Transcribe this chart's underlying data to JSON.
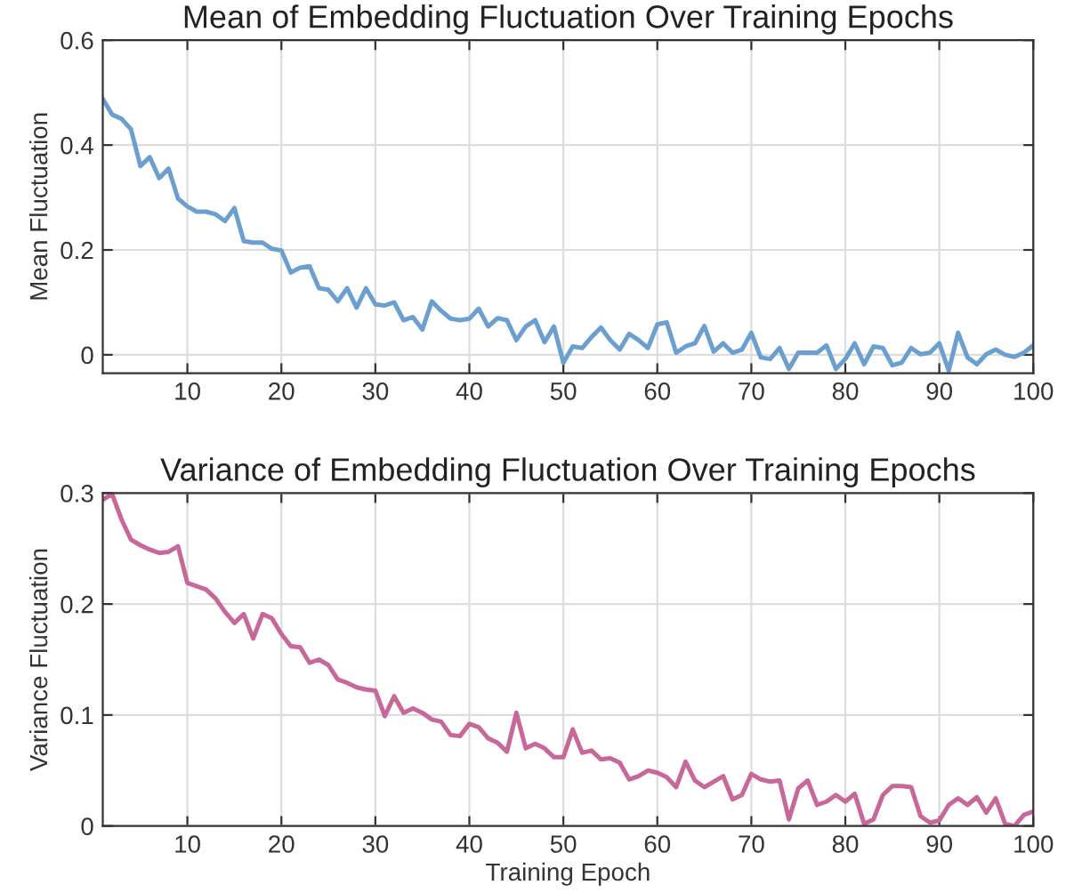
{
  "chart_data": [
    {
      "type": "line",
      "title": "Mean of Embedding Fluctuation Over Training Epochs",
      "ylabel": "Mean Fluctuation",
      "xlim": [
        1,
        100
      ],
      "xticks": [
        10,
        20,
        30,
        40,
        50,
        60,
        70,
        80,
        90,
        100
      ],
      "ylim": [
        -0.035,
        0.6
      ],
      "yticks": [
        0,
        0.2,
        0.4,
        0.6
      ],
      "grid": true,
      "x": [
        1,
        2,
        3,
        4,
        5,
        6,
        7,
        8,
        9,
        10,
        11,
        12,
        13,
        14,
        15,
        16,
        17,
        18,
        19,
        20,
        21,
        22,
        23,
        24,
        25,
        26,
        27,
        28,
        29,
        30,
        31,
        32,
        33,
        34,
        35,
        36,
        37,
        38,
        39,
        40,
        41,
        42,
        43,
        44,
        45,
        46,
        47,
        48,
        49,
        50,
        51,
        52,
        53,
        54,
        55,
        56,
        57,
        58,
        59,
        60,
        61,
        62,
        63,
        64,
        65,
        66,
        67,
        68,
        69,
        70,
        71,
        72,
        73,
        74,
        75,
        76,
        77,
        78,
        79,
        80,
        81,
        82,
        83,
        84,
        85,
        86,
        87,
        88,
        89,
        90,
        91,
        92,
        93,
        94,
        95,
        96,
        97,
        98,
        99,
        100
      ],
      "series": [
        {
          "color": "#6a9fd0",
          "values": [
            0.488,
            0.458,
            0.45,
            0.43,
            0.36,
            0.377,
            0.337,
            0.355,
            0.298,
            0.283,
            0.273,
            0.273,
            0.268,
            0.255,
            0.28,
            0.217,
            0.214,
            0.214,
            0.202,
            0.199,
            0.157,
            0.166,
            0.169,
            0.127,
            0.124,
            0.102,
            0.127,
            0.09,
            0.127,
            0.096,
            0.094,
            0.1,
            0.066,
            0.072,
            0.048,
            0.102,
            0.084,
            0.069,
            0.066,
            0.069,
            0.088,
            0.054,
            0.07,
            0.066,
            0.028,
            0.054,
            0.066,
            0.024,
            0.054,
            -0.015,
            0.016,
            0.013,
            0.034,
            0.052,
            0.028,
            0.01,
            0.04,
            0.028,
            0.013,
            0.058,
            0.062,
            0.004,
            0.016,
            0.022,
            0.055,
            0.006,
            0.022,
            0.004,
            0.01,
            0.042,
            -0.005,
            -0.008,
            0.013,
            -0.027,
            0.004,
            0.004,
            0.004,
            0.018,
            -0.027,
            -0.008,
            0.022,
            -0.018,
            0.016,
            0.013,
            -0.02,
            -0.015,
            0.013,
            0.001,
            0.004,
            0.022,
            -0.03,
            0.042,
            -0.005,
            -0.018,
            0.001,
            0.01,
            0,
            -0.004,
            0.004,
            0.018
          ]
        }
      ]
    },
    {
      "type": "line",
      "title": "Variance of Embedding Fluctuation Over Training Epochs",
      "xlabel": "Training Epoch",
      "ylabel": "Variance Fluctuation",
      "xlim": [
        1,
        100
      ],
      "xticks": [
        10,
        20,
        30,
        40,
        50,
        60,
        70,
        80,
        90,
        100
      ],
      "ylim": [
        0,
        0.3
      ],
      "yticks": [
        0,
        0.1,
        0.2,
        0.3
      ],
      "grid": true,
      "x": [
        1,
        2,
        3,
        4,
        5,
        6,
        7,
        8,
        9,
        10,
        11,
        12,
        13,
        14,
        15,
        16,
        17,
        18,
        19,
        20,
        21,
        22,
        23,
        24,
        25,
        26,
        27,
        28,
        29,
        30,
        31,
        32,
        33,
        34,
        35,
        36,
        37,
        38,
        39,
        40,
        41,
        42,
        43,
        44,
        45,
        46,
        47,
        48,
        49,
        50,
        51,
        52,
        53,
        54,
        55,
        56,
        57,
        58,
        59,
        60,
        61,
        62,
        63,
        64,
        65,
        66,
        67,
        68,
        69,
        70,
        71,
        72,
        73,
        74,
        75,
        76,
        77,
        78,
        79,
        80,
        81,
        82,
        83,
        84,
        85,
        86,
        87,
        88,
        89,
        90,
        91,
        92,
        93,
        94,
        95,
        96,
        97,
        98,
        99,
        100
      ],
      "series": [
        {
          "color": "#c8679a",
          "values": [
            0.294,
            0.299,
            0.276,
            0.258,
            0.253,
            0.249,
            0.246,
            0.247,
            0.252,
            0.219,
            0.216,
            0.213,
            0.205,
            0.193,
            0.183,
            0.191,
            0.169,
            0.191,
            0.187,
            0.173,
            0.162,
            0.161,
            0.147,
            0.15,
            0.145,
            0.132,
            0.129,
            0.125,
            0.123,
            0.122,
            0.099,
            0.117,
            0.102,
            0.106,
            0.102,
            0.096,
            0.094,
            0.082,
            0.081,
            0.092,
            0.089,
            0.079,
            0.075,
            0.067,
            0.102,
            0.07,
            0.074,
            0.07,
            0.062,
            0.062,
            0.087,
            0.066,
            0.068,
            0.06,
            0.061,
            0.057,
            0.042,
            0.045,
            0.05,
            0.048,
            0.044,
            0.035,
            0.058,
            0.041,
            0.035,
            0.04,
            0.045,
            0.024,
            0.028,
            0.047,
            0.042,
            0.04,
            0.041,
            0.006,
            0.034,
            0.041,
            0.019,
            0.022,
            0.028,
            0.022,
            0.029,
            0.002,
            0.006,
            0.028,
            0.036,
            0.036,
            0.035,
            0.009,
            0.003,
            0.005,
            0.019,
            0.025,
            0.019,
            0.026,
            0.012,
            0.025,
            0.002,
            0,
            0.01,
            0.013
          ]
        }
      ]
    }
  ]
}
